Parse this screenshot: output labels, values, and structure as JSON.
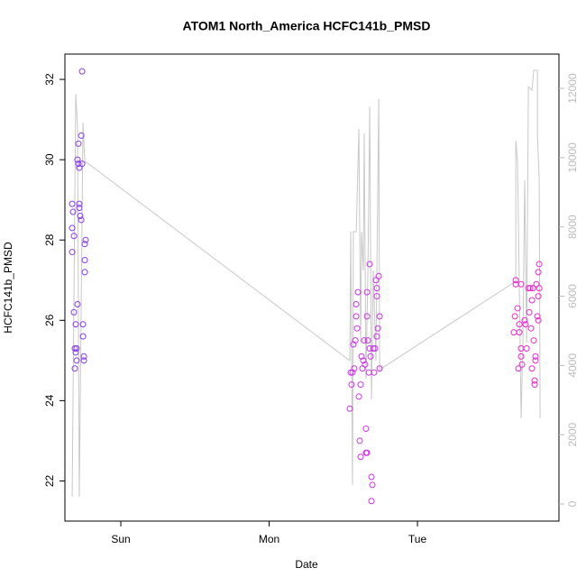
{
  "chart_data": {
    "type": "scatter",
    "title": "ATOM1 North_America HCFC141b_PMSD",
    "x_label": "Date",
    "y_label": "HCFC141b_PMSD",
    "xlim": [
      -0.377,
      2.954
    ],
    "xticks": [
      {
        "value": 0,
        "label": "Sun"
      },
      {
        "value": 1,
        "label": "Mon"
      },
      {
        "value": 2,
        "label": "Tue"
      }
    ],
    "ylim": [
      21.0,
      32.63
    ],
    "yticks": [
      22,
      24,
      26,
      28,
      30,
      32
    ],
    "y2lim": [
      -495,
      12990
    ],
    "y2ticks": [
      0,
      2000,
      4000,
      6000,
      8000,
      10000,
      12000
    ],
    "y2_color": "#bbbbbb",
    "series": [
      {
        "color": "#8a3ee8",
        "x": [
          -0.328,
          -0.322,
          -0.328,
          -0.316,
          -0.328,
          -0.316,
          -0.304,
          -0.31,
          -0.298,
          -0.304,
          -0.31,
          -0.298,
          -0.292,
          -0.286,
          -0.292,
          -0.286,
          -0.28,
          -0.28,
          -0.28,
          -0.274,
          -0.267,
          -0.267,
          -0.261,
          -0.261,
          -0.255,
          -0.255,
          -0.249,
          -0.249,
          -0.243,
          -0.237,
          -0.243,
          -0.243
        ],
        "values": [
          28.9,
          28.7,
          28.3,
          28.1,
          27.7,
          26.2,
          25.9,
          25.3,
          25.3,
          25.2,
          24.8,
          25.0,
          26.4,
          30.4,
          30.0,
          29.9,
          29.8,
          28.9,
          28.8,
          28.6,
          28.5,
          30.6,
          29.9,
          32.2,
          25.9,
          25.6,
          25.1,
          25.0,
          27.9,
          28.0,
          27.5,
          27.2
        ]
      },
      {
        "color": "#cc33e6",
        "x": [
          1.544,
          1.55,
          1.556,
          1.562,
          1.568,
          1.574,
          1.581,
          1.587,
          1.587,
          1.593,
          1.599,
          1.605,
          1.611,
          1.617,
          1.617,
          1.623,
          1.629,
          1.635,
          1.641,
          1.647,
          1.653,
          1.653,
          1.66,
          1.66,
          1.66,
          1.666,
          1.672,
          1.678,
          1.678,
          1.684,
          1.69,
          1.696,
          1.69,
          1.702,
          1.708,
          1.714,
          1.72,
          1.726,
          1.726,
          1.739,
          1.733,
          1.745,
          1.745,
          1.726
        ],
        "values": [
          23.8,
          24.7,
          24.4,
          24.7,
          25.4,
          24.8,
          25.5,
          26.4,
          26.1,
          25.8,
          26.7,
          24.1,
          23.0,
          22.6,
          24.4,
          25.1,
          24.8,
          25.0,
          25.5,
          24.9,
          23.3,
          22.7,
          22.7,
          26.7,
          26.1,
          25.5,
          24.7,
          27.4,
          25.3,
          25.1,
          22.1,
          21.9,
          21.5,
          25.3,
          24.7,
          25.3,
          27.0,
          26.8,
          26.6,
          27.1,
          25.8,
          26.1,
          24.8,
          25.6
        ]
      },
      {
        "color": "#e82bcf",
        "x": [
          2.65,
          2.657,
          2.663,
          2.663,
          2.675,
          2.681,
          2.687,
          2.687,
          2.699,
          2.699,
          2.699,
          2.705,
          2.723,
          2.729,
          2.736,
          2.748,
          2.754,
          2.76,
          2.766,
          2.772,
          2.772,
          2.778,
          2.784,
          2.79,
          2.79,
          2.796,
          2.796,
          2.802,
          2.809,
          2.815,
          2.815,
          2.815,
          2.821,
          2.821
        ],
        "values": [
          25.7,
          26.1,
          27.0,
          26.9,
          26.3,
          24.8,
          25.7,
          25.9,
          26.9,
          25.1,
          25.3,
          24.9,
          26.0,
          25.9,
          25.3,
          26.8,
          26.2,
          26.8,
          25.8,
          26.5,
          24.8,
          26.8,
          25.5,
          24.5,
          24.4,
          25.1,
          25.0,
          26.9,
          26.1,
          26.6,
          26.0,
          27.2,
          27.4,
          26.8
        ]
      },
      {
        "type": "line",
        "axis": "y2",
        "color": "#c8c8c8",
        "x": [
          -0.328,
          -0.304,
          -0.292,
          -0.28,
          -0.255,
          -0.243,
          -0.231,
          1.544,
          1.55,
          1.562,
          1.568,
          1.587,
          1.605,
          1.617,
          1.623,
          1.635,
          1.641,
          1.653,
          1.666,
          1.678,
          1.69,
          1.702,
          1.72,
          1.739,
          1.745,
          2.663,
          2.663,
          2.675,
          2.699,
          2.711,
          2.723,
          2.736,
          2.748,
          2.772,
          2.784,
          2.809,
          2.809,
          2.821,
          2.827
        ],
        "values": [
          208,
          11843,
          10905,
          208,
          11010,
          9864,
          9864,
          4138,
          7860,
          547,
          7860,
          7860,
          10827,
          4659,
          7860,
          6741,
          10697,
          3618,
          6741,
          11478,
          3019,
          6741,
          4138,
          11687,
          3878,
          6429,
          10489,
          9864,
          2473,
          4659,
          9343,
          4659,
          12051,
          11947,
          12520,
          12520,
          10645,
          9343,
          2473
        ]
      }
    ]
  }
}
